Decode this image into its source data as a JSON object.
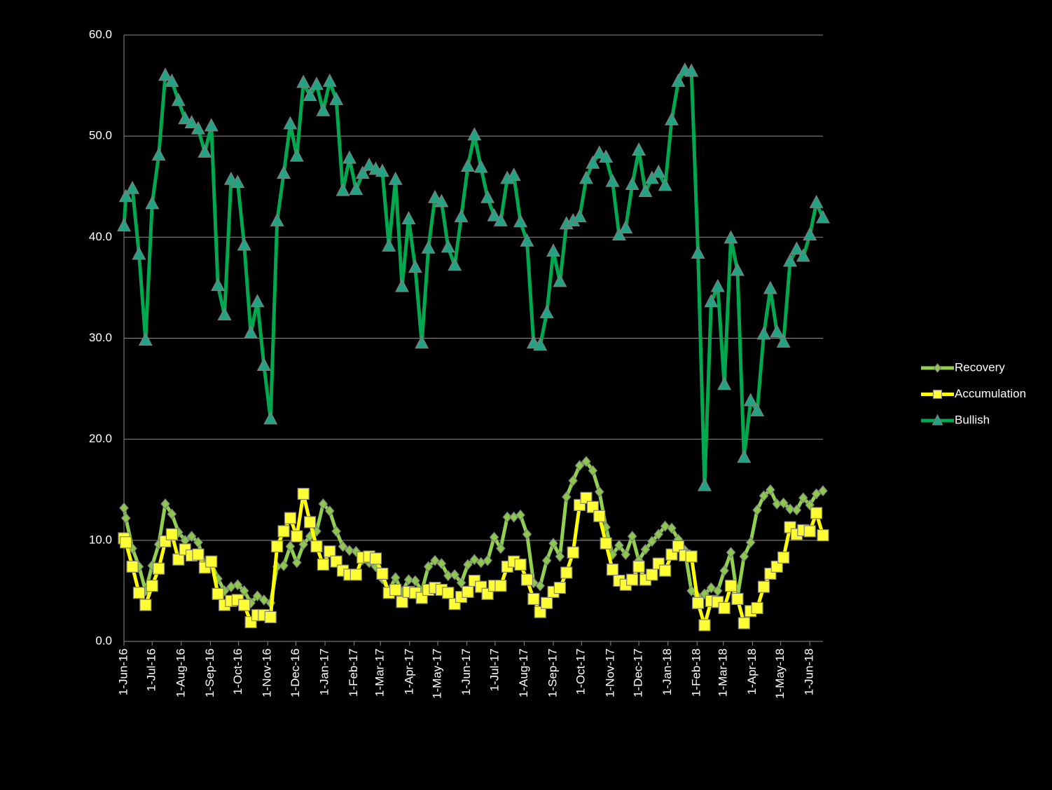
{
  "chart_data": {
    "type": "line",
    "x": [
      "2016-06-01",
      "2016-06-03",
      "2016-06-10",
      "2016-06-17",
      "2016-06-24",
      "2016-07-01",
      "2016-07-08",
      "2016-07-15",
      "2016-07-22",
      "2016-07-29",
      "2016-08-05",
      "2016-08-12",
      "2016-08-19",
      "2016-08-26",
      "2016-09-02",
      "2016-09-09",
      "2016-09-16",
      "2016-09-23",
      "2016-09-30",
      "2016-10-07",
      "2016-10-14",
      "2016-10-21",
      "2016-10-28",
      "2016-11-04",
      "2016-11-11",
      "2016-11-18",
      "2016-11-25",
      "2016-12-02",
      "2016-12-09",
      "2016-12-16",
      "2016-12-23",
      "2016-12-30",
      "2017-01-06",
      "2017-01-13",
      "2017-01-20",
      "2017-01-27",
      "2017-02-03",
      "2017-02-10",
      "2017-02-17",
      "2017-02-24",
      "2017-03-03",
      "2017-03-10",
      "2017-03-17",
      "2017-03-24",
      "2017-03-31",
      "2017-04-07",
      "2017-04-14",
      "2017-04-21",
      "2017-04-28",
      "2017-05-05",
      "2017-05-12",
      "2017-05-19",
      "2017-05-26",
      "2017-06-02",
      "2017-06-09",
      "2017-06-16",
      "2017-06-23",
      "2017-06-30",
      "2017-07-07",
      "2017-07-14",
      "2017-07-21",
      "2017-07-28",
      "2017-08-04",
      "2017-08-11",
      "2017-08-18",
      "2017-08-25",
      "2017-09-01",
      "2017-09-08",
      "2017-09-15",
      "2017-09-22",
      "2017-09-29",
      "2017-10-06",
      "2017-10-13",
      "2017-10-20",
      "2017-10-27",
      "2017-11-03",
      "2017-11-10",
      "2017-11-17",
      "2017-11-24",
      "2017-12-01",
      "2017-12-08",
      "2017-12-15",
      "2017-12-22",
      "2017-12-29",
      "2018-01-05",
      "2018-01-12",
      "2018-01-19",
      "2018-01-26",
      "2018-02-02",
      "2018-02-09",
      "2018-02-16",
      "2018-02-23",
      "2018-03-02",
      "2018-03-09",
      "2018-03-16",
      "2018-03-23",
      "2018-03-30",
      "2018-04-06",
      "2018-04-13",
      "2018-04-20",
      "2018-04-27",
      "2018-05-04",
      "2018-05-11",
      "2018-05-18",
      "2018-05-25",
      "2018-06-01",
      "2018-06-08",
      "2018-06-15"
    ],
    "series": [
      {
        "name": "Recovery",
        "color": "#92d050",
        "marker": "diamond",
        "marker_color": "#8cc84b",
        "values": [
          13.2,
          12.2,
          9.2,
          7.4,
          5.0,
          7.5,
          9.6,
          13.6,
          12.6,
          10.8,
          10.0,
          10.4,
          9.8,
          7.6,
          7.8,
          6.2,
          5.0,
          5.4,
          5.6,
          5.0,
          3.8,
          4.5,
          4.1,
          3.8,
          7.4,
          7.5,
          9.4,
          7.8,
          9.6,
          10.4,
          10.9,
          13.6,
          12.9,
          10.9,
          9.4,
          9.0,
          8.9,
          8.1,
          7.8,
          7.4,
          6.2,
          5.0,
          6.3,
          4.9,
          6.1,
          6.0,
          5.0,
          7.4,
          8.0,
          7.7,
          6.5,
          6.6,
          5.8,
          7.6,
          8.1,
          7.8,
          8.0,
          10.3,
          9.2,
          12.3,
          12.3,
          12.5,
          10.6,
          5.8,
          5.5,
          8.0,
          9.7,
          8.4,
          14.3,
          15.9,
          17.4,
          17.8,
          16.9,
          14.8,
          11.3,
          8.6,
          9.5,
          8.6,
          10.4,
          8.0,
          9.1,
          9.9,
          10.6,
          11.4,
          11.2,
          10.1,
          9.0,
          5.0,
          4.4,
          4.7,
          5.3,
          5.0,
          7.0,
          8.8,
          4.4,
          8.4,
          9.8,
          13.0,
          14.4,
          15.0,
          13.6,
          13.7,
          13.1,
          13.0,
          14.2,
          13.5,
          14.6,
          14.9
        ]
      },
      {
        "name": "Accumulation",
        "color": "#ffff00",
        "marker": "square",
        "marker_color": "#ffff33",
        "values": [
          10.2,
          9.8,
          7.4,
          4.8,
          3.6,
          5.5,
          7.2,
          9.9,
          10.6,
          8.1,
          9.1,
          8.5,
          8.6,
          7.3,
          7.9,
          4.7,
          3.6,
          4.0,
          4.1,
          3.6,
          1.9,
          2.6,
          2.6,
          2.4,
          9.4,
          10.9,
          12.2,
          10.4,
          14.6,
          11.8,
          9.4,
          7.6,
          8.9,
          7.9,
          7.0,
          6.6,
          6.6,
          8.3,
          8.4,
          8.2,
          6.7,
          4.8,
          5.1,
          3.9,
          4.9,
          4.8,
          4.3,
          5.1,
          5.3,
          5.1,
          4.8,
          3.7,
          4.4,
          4.9,
          6.0,
          5.4,
          4.7,
          5.5,
          5.5,
          7.4,
          7.9,
          7.6,
          6.1,
          4.2,
          2.9,
          3.8,
          4.9,
          5.3,
          6.8,
          8.8,
          13.5,
          14.2,
          13.3,
          12.4,
          9.7,
          7.1,
          6.0,
          5.6,
          6.1,
          7.4,
          6.1,
          6.6,
          7.7,
          7.0,
          8.6,
          9.4,
          8.5,
          8.4,
          3.8,
          1.6,
          4.0,
          3.9,
          3.3,
          5.5,
          4.2,
          1.8,
          3.0,
          3.3,
          5.4,
          6.7,
          7.4,
          8.3,
          11.3,
          10.6,
          11.0,
          10.9,
          12.7,
          10.5
        ]
      },
      {
        "name": "Bullish",
        "color": "#00a84f",
        "marker": "triangle",
        "marker_color": "#22a384",
        "values": [
          41.1,
          44.0,
          44.8,
          38.3,
          29.8,
          43.3,
          48.1,
          56.0,
          55.4,
          53.5,
          51.7,
          51.3,
          50.7,
          48.4,
          51.0,
          35.2,
          32.3,
          45.7,
          45.4,
          39.2,
          30.5,
          33.6,
          27.3,
          22.0,
          41.6,
          46.3,
          51.2,
          48.0,
          55.3,
          54.0,
          55.1,
          52.5,
          55.4,
          53.6,
          44.6,
          47.8,
          44.7,
          46.3,
          47.1,
          46.7,
          46.5,
          39.1,
          45.7,
          35.1,
          41.8,
          37.0,
          29.5,
          38.9,
          43.9,
          43.5,
          39.0,
          37.2,
          42.0,
          47.0,
          50.1,
          46.9,
          43.9,
          42.1,
          41.6,
          45.8,
          46.1,
          41.5,
          39.6,
          29.5,
          29.3,
          32.5,
          38.6,
          35.6,
          41.3,
          41.6,
          42.0,
          45.8,
          47.3,
          48.3,
          47.9,
          45.5,
          40.2,
          40.9,
          45.2,
          48.6,
          44.5,
          45.8,
          46.4,
          45.1,
          51.6,
          55.4,
          56.5,
          56.4,
          38.4,
          15.4,
          33.6,
          35.1,
          25.4,
          39.9,
          36.7,
          18.2,
          23.8,
          22.8,
          30.4,
          34.9,
          30.6,
          29.6,
          37.6,
          38.8,
          38.1,
          40.2,
          43.4,
          41.9
        ]
      }
    ],
    "xlim": [
      "2016-06-01",
      "2018-06-15"
    ],
    "xticks": [
      {
        "value": "2016-06-01",
        "label": "1-Jun-16"
      },
      {
        "value": "2016-07-01",
        "label": "1-Jul-16"
      },
      {
        "value": "2016-08-01",
        "label": "1-Aug-16"
      },
      {
        "value": "2016-09-01",
        "label": "1-Sep-16"
      },
      {
        "value": "2016-10-01",
        "label": "1-Oct-16"
      },
      {
        "value": "2016-11-01",
        "label": "1-Nov-16"
      },
      {
        "value": "2016-12-01",
        "label": "1-Dec-16"
      },
      {
        "value": "2017-01-01",
        "label": "1-Jan-17"
      },
      {
        "value": "2017-02-01",
        "label": "1-Feb-17"
      },
      {
        "value": "2017-03-01",
        "label": "1-Mar-17"
      },
      {
        "value": "2017-04-01",
        "label": "1-Apr-17"
      },
      {
        "value": "2017-05-01",
        "label": "1-May-17"
      },
      {
        "value": "2017-06-01",
        "label": "1-Jun-17"
      },
      {
        "value": "2017-07-01",
        "label": "1-Jul-17"
      },
      {
        "value": "2017-08-01",
        "label": "1-Aug-17"
      },
      {
        "value": "2017-09-01",
        "label": "1-Sep-17"
      },
      {
        "value": "2017-10-01",
        "label": "1-Oct-17"
      },
      {
        "value": "2017-11-01",
        "label": "1-Nov-17"
      },
      {
        "value": "2017-12-01",
        "label": "1-Dec-17"
      },
      {
        "value": "2018-01-01",
        "label": "1-Jan-18"
      },
      {
        "value": "2018-02-01",
        "label": "1-Feb-18"
      },
      {
        "value": "2018-03-01",
        "label": "1-Mar-18"
      },
      {
        "value": "2018-04-01",
        "label": "1-Apr-18"
      },
      {
        "value": "2018-05-01",
        "label": "1-May-18"
      },
      {
        "value": "2018-06-01",
        "label": "1-Jun-18"
      }
    ],
    "ylim": [
      0,
      60
    ],
    "yticks": [
      {
        "value": 0,
        "label": "0.0"
      },
      {
        "value": 10,
        "label": "10.0"
      },
      {
        "value": 20,
        "label": "20.0"
      },
      {
        "value": 30,
        "label": "30.0"
      },
      {
        "value": 40,
        "label": "40.0"
      },
      {
        "value": 50,
        "label": "50.0"
      },
      {
        "value": 60,
        "label": "60.0"
      }
    ],
    "grid": true,
    "legend": "right"
  }
}
